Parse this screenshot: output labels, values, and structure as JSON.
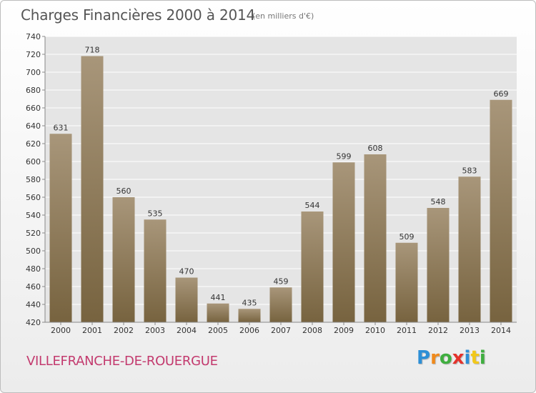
{
  "header": {
    "title": "Charges Financières 2000 à 2014",
    "subtitle": "(en milliers d'€)"
  },
  "footer": {
    "commune": "VILLEFRANCHE-DE-ROUERGUE",
    "logo_letters": [
      "P",
      "r",
      "o",
      "x",
      "i",
      "t",
      "i"
    ],
    "logo_colors": [
      "#2d8fd6",
      "#f08a1c",
      "#3fae3f",
      "#e4322b",
      "#2d8fd6",
      "#f2c81a",
      "#3fae3f"
    ]
  },
  "colors": {
    "bar_top": "#a8967a",
    "bar_bottom": "#77633f",
    "grid": "#ffffff",
    "plot_bg": "#e5e5e5",
    "text": "#333333"
  },
  "chart_data": {
    "type": "bar",
    "categories": [
      "2000",
      "2001",
      "2002",
      "2003",
      "2004",
      "2005",
      "2006",
      "2007",
      "2008",
      "2009",
      "2010",
      "2011",
      "2012",
      "2013",
      "2014"
    ],
    "values": [
      631,
      718,
      560,
      535,
      470,
      441,
      435,
      459,
      544,
      599,
      608,
      509,
      548,
      583,
      669
    ],
    "title": "Charges Financières 2000 à 2014",
    "subtitle": "(en milliers d'€)",
    "xlabel": "",
    "ylabel": "",
    "ylim": [
      420,
      740
    ],
    "yticks": [
      420,
      440,
      460,
      480,
      500,
      520,
      540,
      560,
      580,
      600,
      620,
      640,
      660,
      680,
      700,
      720,
      740
    ],
    "grid": true,
    "data_labels": true
  }
}
